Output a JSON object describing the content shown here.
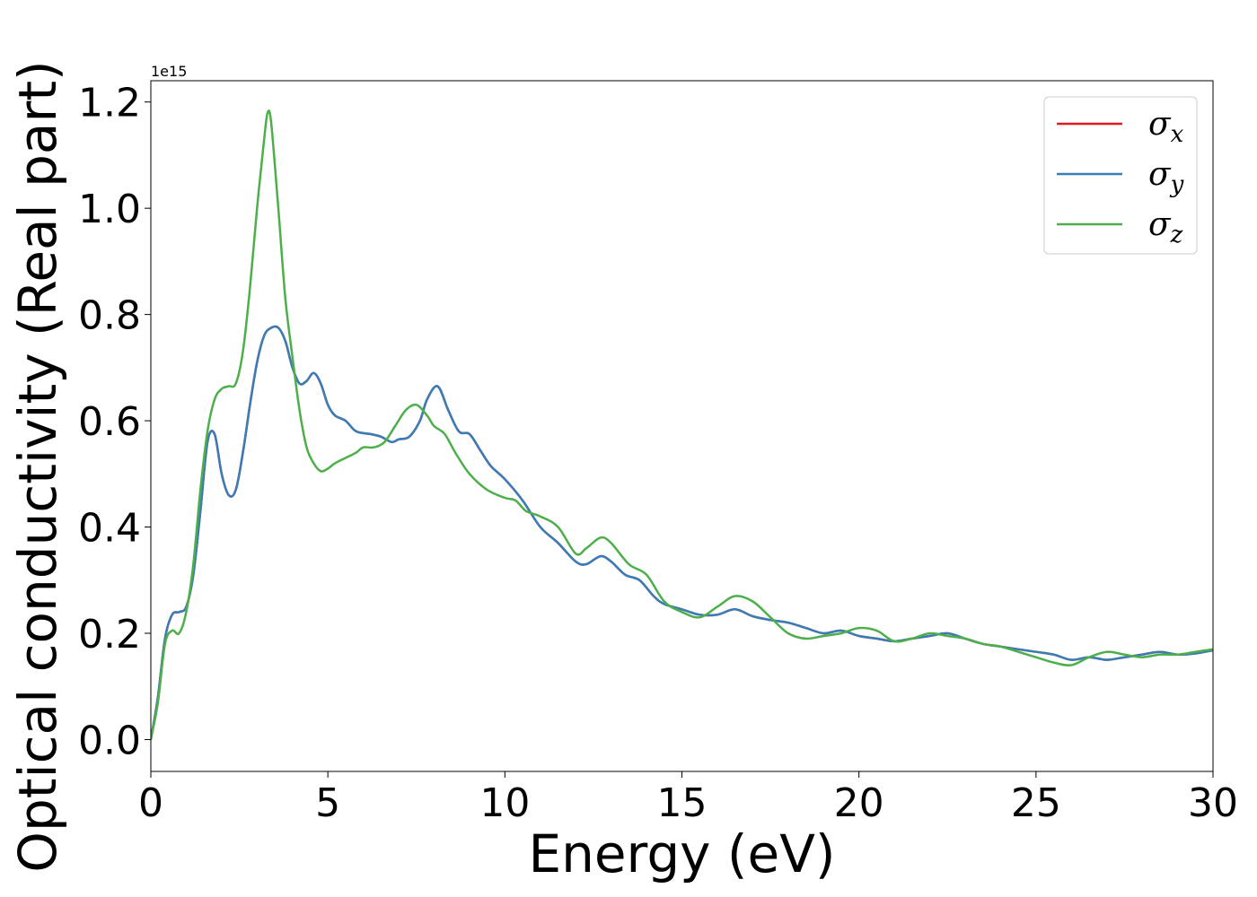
{
  "chart_data": {
    "type": "line",
    "xlabel": "Energy (eV)",
    "ylabel": "Optical conductivity (Real part)",
    "y_offset_label": "1e15",
    "xlim": [
      0,
      30
    ],
    "ylim": [
      -0.06,
      1.24
    ],
    "x_ticks": [
      0,
      5,
      10,
      15,
      20,
      25,
      30
    ],
    "x_tick_labels": [
      "0",
      "5",
      "10",
      "15",
      "20",
      "25",
      "30"
    ],
    "y_ticks": [
      0.0,
      0.2,
      0.4,
      0.6,
      0.8,
      1.0,
      1.2
    ],
    "y_tick_labels": [
      "0.0",
      "0.2",
      "0.4",
      "0.6",
      "0.8",
      "1.0",
      "1.2"
    ],
    "grid": false,
    "legend_position": "top-right",
    "series": [
      {
        "name": "σx",
        "symbol": "σ",
        "subscript": "x",
        "color": "#e41a1c",
        "x": [
          0,
          0.2,
          0.4,
          0.6,
          0.8,
          1.0,
          1.2,
          1.4,
          1.6,
          1.8,
          2.0,
          2.2,
          2.4,
          2.6,
          2.8,
          3.0,
          3.2,
          3.4,
          3.6,
          3.8,
          4.0,
          4.2,
          4.4,
          4.6,
          4.8,
          5.0,
          5.2,
          5.5,
          5.8,
          6.2,
          6.5,
          6.8,
          7.0,
          7.3,
          7.6,
          7.8,
          8.1,
          8.4,
          8.7,
          9.0,
          9.3,
          9.6,
          10.0,
          10.5,
          11.0,
          11.5,
          12.0,
          12.3,
          12.7,
          13.0,
          13.4,
          13.8,
          14.2,
          14.5,
          15.0,
          15.5,
          16.0,
          16.5,
          17.0,
          17.5,
          18.0,
          18.5,
          19.0,
          19.5,
          20.0,
          20.5,
          21.0,
          21.5,
          22.0,
          22.5,
          23.0,
          23.5,
          24.0,
          24.5,
          25.0,
          25.5,
          26.0,
          26.5,
          27.0,
          27.5,
          28.0,
          28.5,
          29.0,
          29.5,
          30.0
        ],
        "y": [
          0.0,
          0.08,
          0.19,
          0.235,
          0.24,
          0.25,
          0.31,
          0.43,
          0.56,
          0.575,
          0.5,
          0.46,
          0.47,
          0.54,
          0.63,
          0.71,
          0.76,
          0.775,
          0.775,
          0.75,
          0.7,
          0.67,
          0.675,
          0.69,
          0.67,
          0.63,
          0.61,
          0.6,
          0.58,
          0.575,
          0.57,
          0.56,
          0.565,
          0.57,
          0.6,
          0.64,
          0.665,
          0.62,
          0.58,
          0.575,
          0.545,
          0.515,
          0.49,
          0.45,
          0.4,
          0.37,
          0.335,
          0.33,
          0.345,
          0.335,
          0.31,
          0.3,
          0.27,
          0.255,
          0.245,
          0.235,
          0.235,
          0.245,
          0.232,
          0.225,
          0.22,
          0.21,
          0.2,
          0.205,
          0.195,
          0.19,
          0.185,
          0.19,
          0.195,
          0.2,
          0.19,
          0.18,
          0.175,
          0.17,
          0.165,
          0.16,
          0.15,
          0.155,
          0.15,
          0.155,
          0.16,
          0.165,
          0.16,
          0.162,
          0.168
        ]
      },
      {
        "name": "σy",
        "symbol": "σ",
        "subscript": "y",
        "color": "#377eb8",
        "x": [
          0,
          0.2,
          0.4,
          0.6,
          0.8,
          1.0,
          1.2,
          1.4,
          1.6,
          1.8,
          2.0,
          2.2,
          2.4,
          2.6,
          2.8,
          3.0,
          3.2,
          3.4,
          3.6,
          3.8,
          4.0,
          4.2,
          4.4,
          4.6,
          4.8,
          5.0,
          5.2,
          5.5,
          5.8,
          6.2,
          6.5,
          6.8,
          7.0,
          7.3,
          7.6,
          7.8,
          8.1,
          8.4,
          8.7,
          9.0,
          9.3,
          9.6,
          10.0,
          10.5,
          11.0,
          11.5,
          12.0,
          12.3,
          12.7,
          13.0,
          13.4,
          13.8,
          14.2,
          14.5,
          15.0,
          15.5,
          16.0,
          16.5,
          17.0,
          17.5,
          18.0,
          18.5,
          19.0,
          19.5,
          20.0,
          20.5,
          21.0,
          21.5,
          22.0,
          22.5,
          23.0,
          23.5,
          24.0,
          24.5,
          25.0,
          25.5,
          26.0,
          26.5,
          27.0,
          27.5,
          28.0,
          28.5,
          29.0,
          29.5,
          30.0
        ],
        "y": [
          0.0,
          0.08,
          0.19,
          0.235,
          0.24,
          0.25,
          0.31,
          0.43,
          0.56,
          0.575,
          0.5,
          0.46,
          0.47,
          0.54,
          0.63,
          0.71,
          0.76,
          0.775,
          0.775,
          0.75,
          0.7,
          0.67,
          0.675,
          0.69,
          0.67,
          0.63,
          0.61,
          0.6,
          0.58,
          0.575,
          0.57,
          0.56,
          0.565,
          0.57,
          0.6,
          0.64,
          0.665,
          0.62,
          0.58,
          0.575,
          0.545,
          0.515,
          0.49,
          0.45,
          0.4,
          0.37,
          0.335,
          0.33,
          0.345,
          0.335,
          0.31,
          0.3,
          0.27,
          0.255,
          0.245,
          0.235,
          0.235,
          0.245,
          0.232,
          0.225,
          0.22,
          0.21,
          0.2,
          0.205,
          0.195,
          0.19,
          0.185,
          0.19,
          0.195,
          0.2,
          0.19,
          0.18,
          0.175,
          0.17,
          0.165,
          0.16,
          0.15,
          0.155,
          0.15,
          0.155,
          0.16,
          0.165,
          0.16,
          0.162,
          0.168
        ]
      },
      {
        "name": "σz",
        "symbol": "σ",
        "subscript": "z",
        "color": "#4daf4a",
        "x": [
          0,
          0.2,
          0.4,
          0.6,
          0.8,
          1.0,
          1.2,
          1.4,
          1.6,
          1.8,
          2.0,
          2.2,
          2.4,
          2.6,
          2.8,
          3.0,
          3.2,
          3.3,
          3.4,
          3.6,
          3.8,
          4.0,
          4.2,
          4.4,
          4.6,
          4.8,
          5.0,
          5.2,
          5.5,
          5.8,
          6.0,
          6.3,
          6.6,
          6.9,
          7.2,
          7.5,
          7.8,
          8.0,
          8.3,
          8.6,
          9.0,
          9.5,
          10.0,
          10.3,
          10.6,
          11.0,
          11.5,
          12.0,
          12.3,
          12.7,
          13.0,
          13.5,
          14.0,
          14.5,
          15.0,
          15.5,
          16.0,
          16.5,
          17.0,
          17.5,
          18.0,
          18.5,
          19.0,
          19.5,
          20.0,
          20.5,
          21.0,
          21.5,
          22.0,
          22.5,
          23.0,
          23.5,
          24.0,
          24.5,
          25.0,
          25.5,
          26.0,
          26.5,
          27.0,
          27.5,
          28.0,
          28.5,
          29.0,
          29.5,
          30.0
        ],
        "y": [
          0.0,
          0.07,
          0.18,
          0.205,
          0.2,
          0.24,
          0.33,
          0.47,
          0.58,
          0.64,
          0.66,
          0.665,
          0.67,
          0.73,
          0.85,
          1.0,
          1.13,
          1.18,
          1.16,
          1.0,
          0.83,
          0.72,
          0.62,
          0.55,
          0.52,
          0.505,
          0.51,
          0.52,
          0.53,
          0.54,
          0.55,
          0.55,
          0.56,
          0.59,
          0.62,
          0.63,
          0.61,
          0.59,
          0.575,
          0.54,
          0.5,
          0.47,
          0.455,
          0.45,
          0.43,
          0.42,
          0.4,
          0.35,
          0.36,
          0.38,
          0.37,
          0.33,
          0.31,
          0.26,
          0.24,
          0.23,
          0.25,
          0.27,
          0.26,
          0.23,
          0.2,
          0.19,
          0.195,
          0.2,
          0.21,
          0.205,
          0.185,
          0.19,
          0.2,
          0.195,
          0.19,
          0.18,
          0.175,
          0.165,
          0.155,
          0.145,
          0.14,
          0.155,
          0.165,
          0.16,
          0.155,
          0.16,
          0.16,
          0.165,
          0.17
        ]
      }
    ]
  }
}
